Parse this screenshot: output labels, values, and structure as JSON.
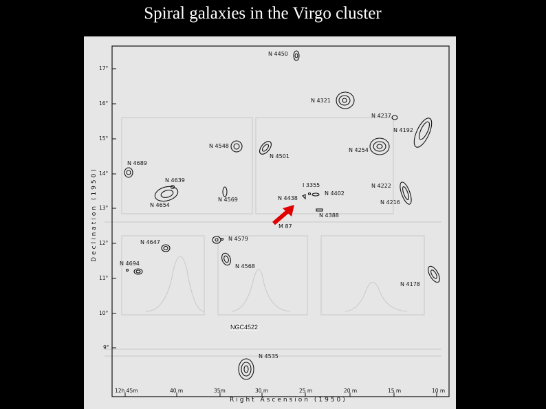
{
  "slide": {
    "title": "Spiral galaxies in the Virgo cluster"
  },
  "map": {
    "x_axis_title": "Right   Ascension   (1950)",
    "y_axis_title": "Declination   (1950)",
    "ra_ticks": [
      "12h 45m",
      "40 m",
      "35m",
      "30 m",
      "25 m",
      "20 m",
      "15 m",
      "10 m"
    ],
    "dec_ticks": [
      "17°",
      "16°",
      "15°",
      "14°",
      "13°",
      "12°",
      "11°",
      "10°",
      "9°"
    ],
    "galaxies": {
      "n4450": "N 4450",
      "n4321": "N 4321",
      "n4237": "N 4237",
      "n4192": "N 4192",
      "n4548": "N 4548",
      "n4254": "N 4254",
      "n4501": "N 4501",
      "n4689": "N 4689",
      "n4639": "N 4639",
      "i3355": "I 3355",
      "n4222": "N 4222",
      "n4402": "N 4402",
      "n4569": "N 4569",
      "n4438": "N 4438",
      "n4216": "N 4216",
      "n4654": "N 4654",
      "n4388": "N 4388",
      "m87": "M 87",
      "n4647": "N 4647",
      "n4579": "N 4579",
      "n4694": "N 4694",
      "n4568": "N 4568",
      "n4178": "N 4178",
      "n4535": "N 4535"
    },
    "annotation": "NGC4522",
    "arrow_color": "#e00000"
  }
}
